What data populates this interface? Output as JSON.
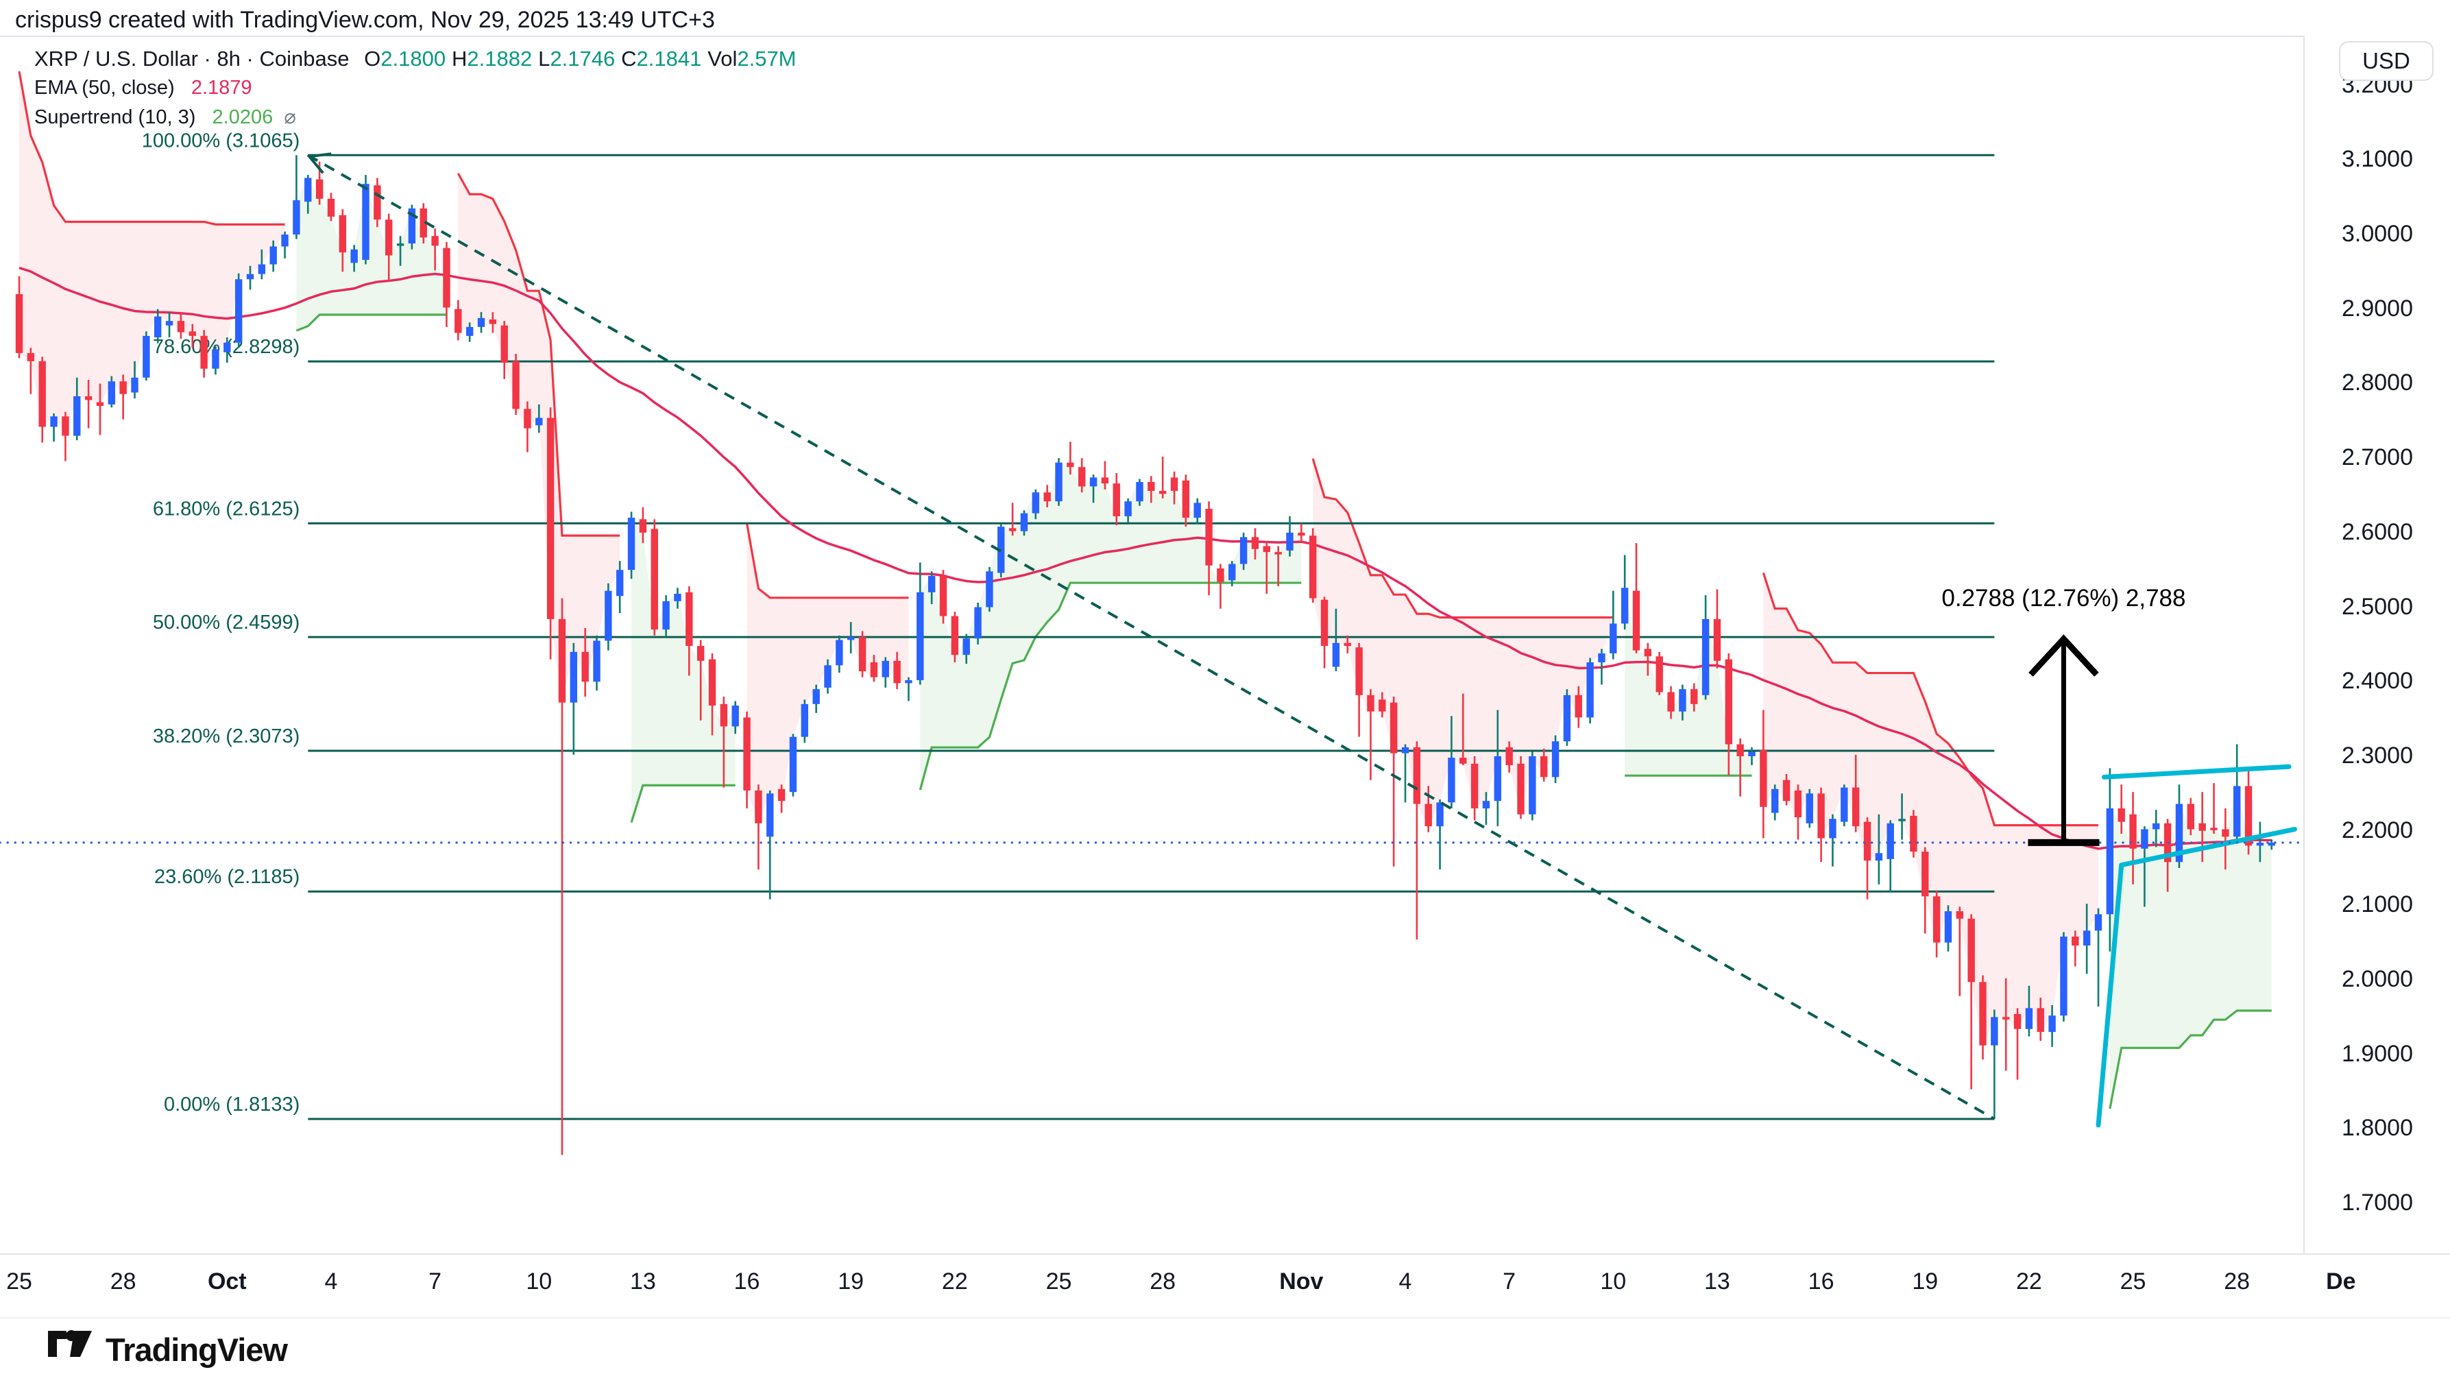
{
  "header": {
    "attribution": "crispus9 created with TradingView.com, Nov 29, 2025 13:49 UTC+3"
  },
  "legend": {
    "symbol": "XRP / U.S. Dollar · 8h · Coinbase",
    "o_key": "O",
    "o_val": "2.1800",
    "h_key": "H",
    "h_val": "2.1882",
    "l_key": "L",
    "l_val": "2.1746",
    "c_key": "C",
    "c_val": "2.1841",
    "vol_key": "Vol",
    "vol_val": "2.57M",
    "ema_label": "EMA (50, close)",
    "ema_value": "2.1879",
    "supertrend_label": "Supertrend (10, 3)",
    "supertrend_value": "2.0206",
    "supertrend_icon": "⌀"
  },
  "price_axis": {
    "currency_button": "USD"
  },
  "footer": {
    "brand": "TradingView"
  },
  "chart_data": {
    "type": "candlestick",
    "title": "XRP / U.S. Dollar · 8h · Coinbase",
    "ylim": [
      1.62,
      3.24
    ],
    "grid": false,
    "y_ticks": [
      3.2,
      3.1,
      3.0,
      2.9,
      2.8,
      2.7,
      2.6,
      2.5,
      2.4,
      2.3,
      2.2,
      2.1,
      2.0,
      1.9,
      1.8,
      1.7
    ],
    "y_tick_format": "0.0000",
    "x_labels": [
      {
        "label": "25",
        "i": 0
      },
      {
        "label": "28",
        "i": 9
      },
      {
        "label": "Oct",
        "i": 18,
        "bold": true
      },
      {
        "label": "4",
        "i": 27
      },
      {
        "label": "7",
        "i": 36
      },
      {
        "label": "10",
        "i": 45
      },
      {
        "label": "13",
        "i": 54
      },
      {
        "label": "16",
        "i": 63
      },
      {
        "label": "19",
        "i": 72
      },
      {
        "label": "22",
        "i": 81
      },
      {
        "label": "25",
        "i": 90
      },
      {
        "label": "28",
        "i": 99
      },
      {
        "label": "Nov",
        "i": 111,
        "bold": true
      },
      {
        "label": "4",
        "i": 120
      },
      {
        "label": "7",
        "i": 129
      },
      {
        "label": "10",
        "i": 138
      },
      {
        "label": "13",
        "i": 147
      },
      {
        "label": "16",
        "i": 156
      },
      {
        "label": "19",
        "i": 165
      },
      {
        "label": "22",
        "i": 174
      },
      {
        "label": "25",
        "i": 183
      },
      {
        "label": "28",
        "i": 192
      },
      {
        "label": "De",
        "i": 201,
        "bold": true
      }
    ],
    "fib_levels": [
      {
        "label": "100.00% (3.1065)",
        "value": 3.1065
      },
      {
        "label": "78.60% (2.8298)",
        "value": 2.8298
      },
      {
        "label": "61.80% (2.6125)",
        "value": 2.6125
      },
      {
        "label": "50.00% (2.4599)",
        "value": 2.4599
      },
      {
        "label": "38.20% (2.3073)",
        "value": 2.3073
      },
      {
        "label": "23.60% (2.1185)",
        "value": 2.1185
      },
      {
        "label": "0.00% (1.8133)",
        "value": 1.8133
      }
    ],
    "indicators": {
      "ema": {
        "period": 50,
        "source": "close",
        "value": 2.1879,
        "start_value": 2.96
      },
      "supertrend": {
        "period": 10,
        "factor": 3,
        "value": 2.0206
      }
    },
    "drawings": {
      "trendline": {
        "from_i": 25,
        "from_price": 3.1065,
        "to_i": 171,
        "to_price": 1.8133,
        "style": "dashed"
      },
      "measure": {
        "i": 177,
        "from_price": 2.1841,
        "to_price": 2.4629,
        "label": "0.2788 (12.76%) 2,788"
      },
      "pattern_upper": {
        "from_i": 180.5,
        "from_price": 2.272,
        "to_i": 196.5,
        "to_price": 2.286
      },
      "pattern_lower_steep": {
        "from_i": 180,
        "from_price": 1.805,
        "to_i": 182,
        "to_price": 2.154
      },
      "pattern_lower": {
        "from_i": 182,
        "from_price": 2.154,
        "to_i": 197,
        "to_price": 2.202
      },
      "price_line": {
        "value": 2.1841,
        "style": "dotted"
      }
    },
    "last_price": 2.1841,
    "colors": {
      "up_body": "#2962ff",
      "up_wick": "#0e7d72",
      "down": "#f23645",
      "ema": "#e6295c",
      "st_up": "#4caf50",
      "st_down": "#f23645",
      "fill_up": "rgba(76,175,80,0.10)",
      "fill_down": "rgba(242,54,69,0.09)",
      "fib": "#0b5d52",
      "trendline": "#0b5d52",
      "pattern": "#00b8d4",
      "price_dotted": "#2f62d9",
      "measure": "#000000",
      "text": "#131722",
      "border": "#e0e3eb"
    },
    "candles": [
      [
        2.92,
        2.944,
        2.834,
        2.841
      ],
      [
        2.841,
        2.848,
        2.786,
        2.83
      ],
      [
        2.83,
        2.836,
        2.721,
        2.742
      ],
      [
        2.742,
        2.76,
        2.722,
        2.756
      ],
      [
        2.756,
        2.762,
        2.696,
        2.73
      ],
      [
        2.73,
        2.808,
        2.724,
        2.783
      ],
      [
        2.783,
        2.805,
        2.74,
        2.778
      ],
      [
        2.775,
        2.8,
        2.731,
        2.77
      ],
      [
        2.772,
        2.81,
        2.768,
        2.803
      ],
      [
        2.803,
        2.812,
        2.752,
        2.786
      ],
      [
        2.788,
        2.83,
        2.78,
        2.808
      ],
      [
        2.808,
        2.87,
        2.804,
        2.864
      ],
      [
        2.862,
        2.9,
        2.854,
        2.89
      ],
      [
        2.878,
        2.896,
        2.862,
        2.884
      ],
      [
        2.884,
        2.893,
        2.86,
        2.869
      ],
      [
        2.87,
        2.88,
        2.848,
        2.864
      ],
      [
        2.864,
        2.872,
        2.808,
        2.82
      ],
      [
        2.82,
        2.85,
        2.812,
        2.846
      ],
      [
        2.842,
        2.862,
        2.828,
        2.855
      ],
      [
        2.855,
        2.948,
        2.848,
        2.94
      ],
      [
        2.94,
        2.958,
        2.926,
        2.947
      ],
      [
        2.947,
        2.98,
        2.94,
        2.96
      ],
      [
        2.96,
        2.992,
        2.95,
        2.984
      ],
      [
        2.984,
        3.004,
        2.968,
        3.0
      ],
      [
        3.0,
        3.1065,
        2.994,
        3.046
      ],
      [
        3.044,
        3.08,
        3.028,
        3.076
      ],
      [
        3.074,
        3.098,
        3.04,
        3.048
      ],
      [
        3.048,
        3.056,
        3.018,
        3.024
      ],
      [
        3.026,
        3.034,
        2.95,
        2.976
      ],
      [
        2.962,
        2.986,
        2.95,
        2.98
      ],
      [
        2.966,
        3.08,
        2.96,
        3.068
      ],
      [
        3.066,
        3.076,
        3.01,
        3.02
      ],
      [
        3.02,
        3.028,
        2.938,
        2.972
      ],
      [
        2.985,
        2.998,
        2.958,
        2.988
      ],
      [
        2.988,
        3.04,
        2.98,
        3.035
      ],
      [
        3.035,
        3.042,
        2.988,
        2.996
      ],
      [
        2.998,
        3.008,
        2.952,
        2.985
      ],
      [
        2.982,
        2.99,
        2.876,
        2.902
      ],
      [
        2.9,
        2.912,
        2.858,
        2.868
      ],
      [
        2.864,
        2.882,
        2.856,
        2.876
      ],
      [
        2.876,
        2.896,
        2.868,
        2.888
      ],
      [
        2.886,
        2.896,
        2.868,
        2.88
      ],
      [
        2.878,
        2.884,
        2.806,
        2.828
      ],
      [
        2.83,
        2.84,
        2.758,
        2.766
      ],
      [
        2.766,
        2.776,
        2.708,
        2.74
      ],
      [
        2.744,
        2.772,
        2.734,
        2.754
      ],
      [
        2.754,
        2.768,
        2.43,
        2.484
      ],
      [
        2.484,
        2.512,
        1.765,
        2.372
      ],
      [
        2.372,
        2.452,
        2.302,
        2.44
      ],
      [
        2.44,
        2.472,
        2.38,
        2.4
      ],
      [
        2.4,
        2.462,
        2.388,
        2.455
      ],
      [
        2.455,
        2.532,
        2.442,
        2.522
      ],
      [
        2.515,
        2.562,
        2.492,
        2.55
      ],
      [
        2.55,
        2.628,
        2.538,
        2.62
      ],
      [
        2.618,
        2.634,
        2.586,
        2.6
      ],
      [
        2.605,
        2.618,
        2.462,
        2.47
      ],
      [
        2.47,
        2.516,
        2.46,
        2.508
      ],
      [
        2.508,
        2.526,
        2.498,
        2.518
      ],
      [
        2.52,
        2.528,
        2.408,
        2.448
      ],
      [
        2.448,
        2.456,
        2.348,
        2.428
      ],
      [
        2.43,
        2.438,
        2.328,
        2.368
      ],
      [
        2.37,
        2.38,
        2.258,
        2.34
      ],
      [
        2.34,
        2.374,
        2.33,
        2.368
      ],
      [
        2.352,
        2.36,
        2.23,
        2.254
      ],
      [
        2.254,
        2.262,
        2.148,
        2.21
      ],
      [
        2.192,
        2.254,
        2.108,
        2.25
      ],
      [
        2.256,
        2.262,
        2.224,
        2.24
      ],
      [
        2.252,
        2.33,
        2.246,
        2.326
      ],
      [
        2.326,
        2.376,
        2.318,
        2.37
      ],
      [
        2.37,
        2.396,
        2.358,
        2.39
      ],
      [
        2.392,
        2.43,
        2.384,
        2.422
      ],
      [
        2.422,
        2.462,
        2.412,
        2.456
      ],
      [
        2.456,
        2.48,
        2.438,
        2.46
      ],
      [
        2.46,
        2.468,
        2.406,
        2.414
      ],
      [
        2.426,
        2.436,
        2.4,
        2.406
      ],
      [
        2.406,
        2.433,
        2.392,
        2.428
      ],
      [
        2.428,
        2.44,
        2.39,
        2.398
      ],
      [
        2.398,
        2.406,
        2.374,
        2.402
      ],
      [
        2.402,
        2.56,
        2.396,
        2.52
      ],
      [
        2.52,
        2.548,
        2.504,
        2.542
      ],
      [
        2.542,
        2.55,
        2.478,
        2.488
      ],
      [
        2.488,
        2.494,
        2.426,
        2.436
      ],
      [
        2.436,
        2.464,
        2.424,
        2.458
      ],
      [
        2.458,
        2.506,
        2.45,
        2.5
      ],
      [
        2.5,
        2.554,
        2.494,
        2.548
      ],
      [
        2.546,
        2.612,
        2.54,
        2.608
      ],
      [
        2.606,
        2.64,
        2.596,
        2.602
      ],
      [
        2.602,
        2.63,
        2.596,
        2.626
      ],
      [
        2.626,
        2.658,
        2.618,
        2.654
      ],
      [
        2.654,
        2.664,
        2.634,
        2.642
      ],
      [
        2.642,
        2.7,
        2.636,
        2.694
      ],
      [
        2.694,
        2.722,
        2.678,
        2.688
      ],
      [
        2.688,
        2.7,
        2.654,
        2.662
      ],
      [
        2.662,
        2.678,
        2.64,
        2.674
      ],
      [
        2.674,
        2.696,
        2.658,
        2.666
      ],
      [
        2.666,
        2.68,
        2.61,
        2.622
      ],
      [
        2.622,
        2.646,
        2.614,
        2.642
      ],
      [
        2.642,
        2.672,
        2.636,
        2.668
      ],
      [
        2.668,
        2.676,
        2.64,
        2.656
      ],
      [
        2.656,
        2.702,
        2.646,
        2.652
      ],
      [
        2.674,
        2.682,
        2.638,
        2.656
      ],
      [
        2.67,
        2.678,
        2.608,
        2.62
      ],
      [
        2.62,
        2.646,
        2.612,
        2.64
      ],
      [
        2.632,
        2.642,
        2.516,
        2.556
      ],
      [
        2.552,
        2.558,
        2.498,
        2.534
      ],
      [
        2.536,
        2.562,
        2.528,
        2.558
      ],
      [
        2.558,
        2.6,
        2.55,
        2.594
      ],
      [
        2.594,
        2.606,
        2.564,
        2.578
      ],
      [
        2.582,
        2.588,
        2.518,
        2.574
      ],
      [
        2.574,
        2.582,
        2.528,
        2.572
      ],
      [
        2.576,
        2.622,
        2.568,
        2.6
      ],
      [
        2.6,
        2.612,
        2.586,
        2.596
      ],
      [
        2.596,
        2.606,
        2.506,
        2.512
      ],
      [
        2.51,
        2.514,
        2.418,
        2.448
      ],
      [
        2.42,
        2.498,
        2.414,
        2.452
      ],
      [
        2.452,
        2.462,
        2.438,
        2.448
      ],
      [
        2.446,
        2.452,
        2.326,
        2.382
      ],
      [
        2.382,
        2.39,
        2.268,
        2.36
      ],
      [
        2.376,
        2.386,
        2.352,
        2.36
      ],
      [
        2.372,
        2.38,
        2.152,
        2.304
      ],
      [
        2.304,
        2.316,
        2.238,
        2.312
      ],
      [
        2.312,
        2.32,
        2.054,
        2.236
      ],
      [
        2.236,
        2.26,
        2.198,
        2.206
      ],
      [
        2.206,
        2.242,
        2.148,
        2.238
      ],
      [
        2.238,
        2.354,
        2.23,
        2.298
      ],
      [
        2.298,
        2.384,
        2.288,
        2.29
      ],
      [
        2.29,
        2.3,
        2.214,
        2.23
      ],
      [
        2.23,
        2.252,
        2.208,
        2.24
      ],
      [
        2.24,
        2.362,
        2.206,
        2.3
      ],
      [
        2.312,
        2.32,
        2.278,
        2.288
      ],
      [
        2.29,
        2.3,
        2.216,
        2.222
      ],
      [
        2.222,
        2.306,
        2.214,
        2.3
      ],
      [
        2.3,
        2.31,
        2.266,
        2.272
      ],
      [
        2.272,
        2.328,
        2.264,
        2.32
      ],
      [
        2.32,
        2.39,
        2.314,
        2.382
      ],
      [
        2.382,
        2.394,
        2.338,
        2.352
      ],
      [
        2.352,
        2.432,
        2.344,
        2.426
      ],
      [
        2.426,
        2.444,
        2.396,
        2.438
      ],
      [
        2.438,
        2.522,
        2.43,
        2.478
      ],
      [
        2.478,
        2.57,
        2.47,
        2.526
      ],
      [
        2.522,
        2.586,
        2.438,
        2.442
      ],
      [
        2.444,
        2.452,
        2.408,
        2.434
      ],
      [
        2.434,
        2.44,
        2.382,
        2.386
      ],
      [
        2.386,
        2.394,
        2.35,
        2.36
      ],
      [
        2.36,
        2.396,
        2.348,
        2.39
      ],
      [
        2.39,
        2.398,
        2.36,
        2.37
      ],
      [
        2.382,
        2.516,
        2.376,
        2.484
      ],
      [
        2.484,
        2.524,
        2.418,
        2.428
      ],
      [
        2.43,
        2.438,
        2.274,
        2.316
      ],
      [
        2.316,
        2.324,
        2.246,
        2.3
      ],
      [
        2.3,
        2.312,
        2.288,
        2.306
      ],
      [
        2.308,
        2.362,
        2.19,
        2.232
      ],
      [
        2.224,
        2.262,
        2.214,
        2.256
      ],
      [
        2.268,
        2.276,
        2.234,
        2.24
      ],
      [
        2.254,
        2.262,
        2.188,
        2.218
      ],
      [
        2.21,
        2.256,
        2.204,
        2.25
      ],
      [
        2.25,
        2.258,
        2.158,
        2.19
      ],
      [
        2.19,
        2.222,
        2.152,
        2.216
      ],
      [
        2.212,
        2.262,
        2.206,
        2.258
      ],
      [
        2.258,
        2.302,
        2.198,
        2.206
      ],
      [
        2.212,
        2.218,
        2.108,
        2.16
      ],
      [
        2.16,
        2.222,
        2.128,
        2.17
      ],
      [
        2.162,
        2.214,
        2.118,
        2.21
      ],
      [
        2.214,
        2.25,
        2.188,
        2.216
      ],
      [
        2.22,
        2.228,
        2.164,
        2.172
      ],
      [
        2.172,
        2.178,
        2.062,
        2.112
      ],
      [
        2.112,
        2.12,
        2.03,
        2.05
      ],
      [
        2.05,
        2.1,
        2.038,
        2.092
      ],
      [
        2.092,
        2.098,
        1.978,
        2.082
      ],
      [
        2.082,
        2.088,
        1.853,
        1.997
      ],
      [
        1.997,
        2.006,
        1.893,
        1.912
      ],
      [
        1.912,
        1.96,
        1.8133,
        1.95
      ],
      [
        1.95,
        2.002,
        1.878,
        1.948
      ],
      [
        1.954,
        1.962,
        1.866,
        1.934
      ],
      [
        1.934,
        1.992,
        1.924,
        1.962
      ],
      [
        1.962,
        1.976,
        1.918,
        1.93
      ],
      [
        1.93,
        1.966,
        1.91,
        1.952
      ],
      [
        1.952,
        2.064,
        1.944,
        2.058
      ],
      [
        2.058,
        2.066,
        2.018,
        2.046
      ],
      [
        2.046,
        2.102,
        2.008,
        2.066
      ],
      [
        2.066,
        2.096,
        1.964,
        2.088
      ],
      [
        2.088,
        2.284,
        2.038,
        2.23
      ],
      [
        2.23,
        2.262,
        2.196,
        2.212
      ],
      [
        2.222,
        2.252,
        2.128,
        2.176
      ],
      [
        2.176,
        2.206,
        2.098,
        2.202
      ],
      [
        2.202,
        2.228,
        2.178,
        2.21
      ],
      [
        2.21,
        2.216,
        2.118,
        2.158
      ],
      [
        2.158,
        2.262,
        2.15,
        2.236
      ],
      [
        2.236,
        2.244,
        2.194,
        2.202
      ],
      [
        2.21,
        2.252,
        2.158,
        2.2
      ],
      [
        2.204,
        2.264,
        2.196,
        2.202
      ],
      [
        2.202,
        2.23,
        2.148,
        2.192
      ],
      [
        2.192,
        2.316,
        2.184,
        2.26
      ],
      [
        2.26,
        2.282,
        2.168,
        2.18
      ],
      [
        2.18,
        2.212,
        2.158,
        2.184
      ],
      [
        2.18,
        2.1882,
        2.1746,
        2.1841
      ]
    ]
  }
}
